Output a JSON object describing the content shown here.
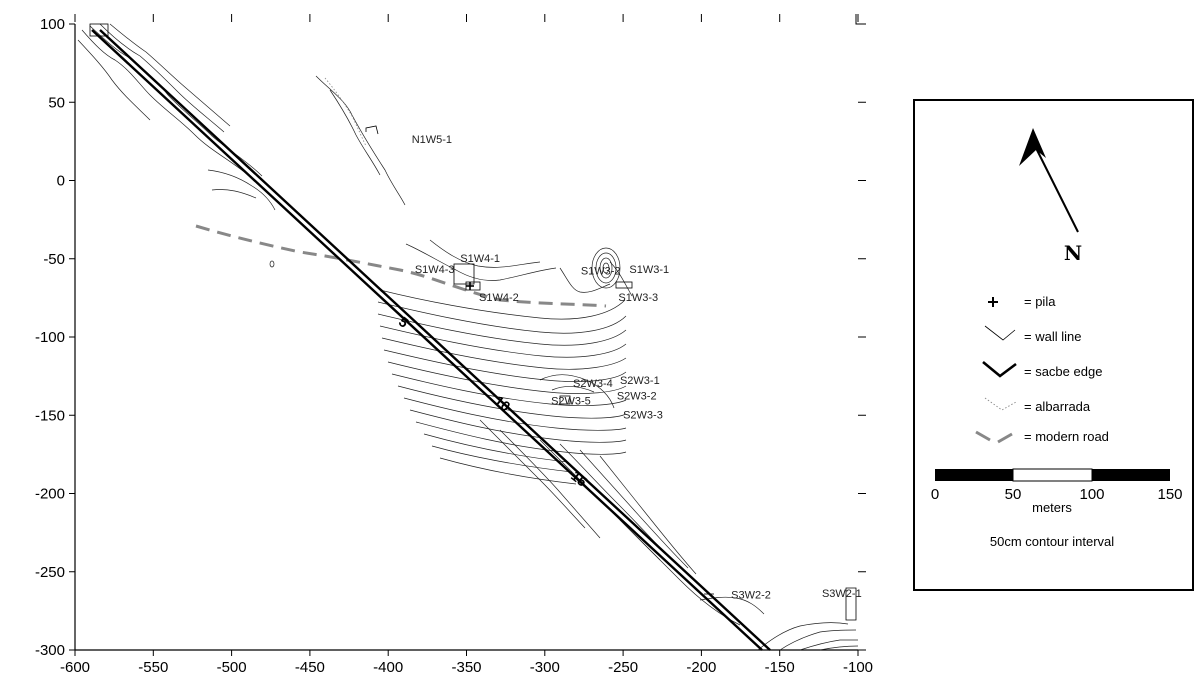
{
  "map": {
    "x_ticks": [
      -600,
      -550,
      -500,
      -450,
      -400,
      -350,
      -300,
      -250,
      -200,
      -150,
      -100
    ],
    "y_ticks": [
      100,
      50,
      0,
      -50,
      -100,
      -150,
      -200,
      -250,
      -300
    ],
    "xlim": [
      -600,
      -100
    ],
    "ylim": [
      -300,
      100
    ],
    "km_markers": [
      {
        "label": "5",
        "x": -392,
        "y": -93
      },
      {
        "label": "10",
        "x": -329,
        "y": -145
      },
      {
        "label": "15",
        "x": -280,
        "y": -193
      }
    ],
    "site_labels": [
      {
        "label": "N1W5-1",
        "x": -385,
        "y": 24
      },
      {
        "label": "S1W4-1",
        "x": -354,
        "y": -52
      },
      {
        "label": "S1W4-3",
        "x": -383,
        "y": -59
      },
      {
        "label": "S1W4-2",
        "x": -342,
        "y": -77
      },
      {
        "label": "S1W3-2",
        "x": -277,
        "y": -60
      },
      {
        "label": "S1W3-1",
        "x": -246,
        "y": -59
      },
      {
        "label": "S1W3-3",
        "x": -253,
        "y": -77
      },
      {
        "label": "S2W3-1",
        "x": -252,
        "y": -130
      },
      {
        "label": "S2W3-4",
        "x": -282,
        "y": -132
      },
      {
        "label": "S2W3-2",
        "x": -254,
        "y": -140
      },
      {
        "label": "S2W3-5",
        "x": -296,
        "y": -143
      },
      {
        "label": "S2W3-3",
        "x": -250,
        "y": -152
      },
      {
        "label": "S3W2-2",
        "x": -181,
        "y": -267
      },
      {
        "label": "S3W2-1",
        "x": -123,
        "y": -266
      }
    ]
  },
  "legend": {
    "north_label": "N",
    "items": [
      {
        "symbol": "pila",
        "label": "= pila"
      },
      {
        "symbol": "wall-line",
        "label": "= wall line"
      },
      {
        "symbol": "sacbe-edge",
        "label": "= sacbe edge"
      },
      {
        "symbol": "albarrada",
        "label": "= albarrada"
      },
      {
        "symbol": "modern-road",
        "label": "= modern road"
      }
    ],
    "scale_ticks": [
      "0",
      "50",
      "100",
      "150"
    ],
    "scale_unit": "meters",
    "contour_note": "50cm contour interval"
  }
}
